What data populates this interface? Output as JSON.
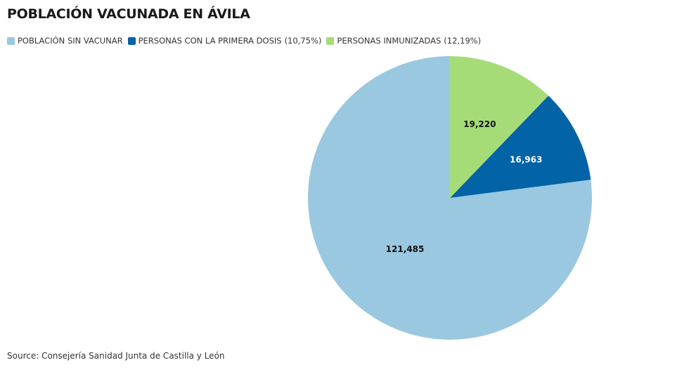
{
  "chart_data": {
    "type": "pie",
    "title": "POBLACIÓN VACUNADA EN ÁVILA",
    "categories": [
      "POBLACIÓN SIN VACUNAR",
      "PERSONAS CON LA PRIMERA DOSIS",
      "PERSONAS INMUNIZADAS"
    ],
    "legend_pct": [
      "",
      "(10,75%)",
      "(12,19%)"
    ],
    "values": [
      121485,
      16963,
      19220
    ],
    "value_labels": [
      "121,485",
      "16,963",
      "19,220"
    ],
    "colors": [
      "#9ac8e0",
      "#0263a6",
      "#a6dc78"
    ],
    "label_colors": [
      "#111111",
      "#ffffff",
      "#111111"
    ],
    "legend_position": "top-left"
  },
  "source": "Source: Consejería Sanidad Junta de Castilla y León"
}
